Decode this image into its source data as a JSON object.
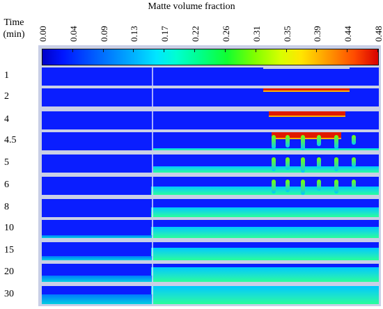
{
  "title": "Matte volume fraction",
  "time_header_line1": "Time",
  "time_header_line2": "(min)",
  "colorbar_ticks": [
    "0.00",
    "0.04",
    "0.09",
    "0.13",
    "0.17",
    "0.22",
    "0.26",
    "0.31",
    "0.35",
    "0.39",
    "0.44",
    "0.48"
  ],
  "times": [
    "1",
    "2",
    "4",
    "4.5",
    "5",
    "6",
    "8",
    "10",
    "15",
    "20",
    "30"
  ],
  "colors": {
    "low": "#0000c8",
    "mid": "#00ffd0",
    "high": "#d80000",
    "panel_bg": "#c9cfe6"
  }
}
